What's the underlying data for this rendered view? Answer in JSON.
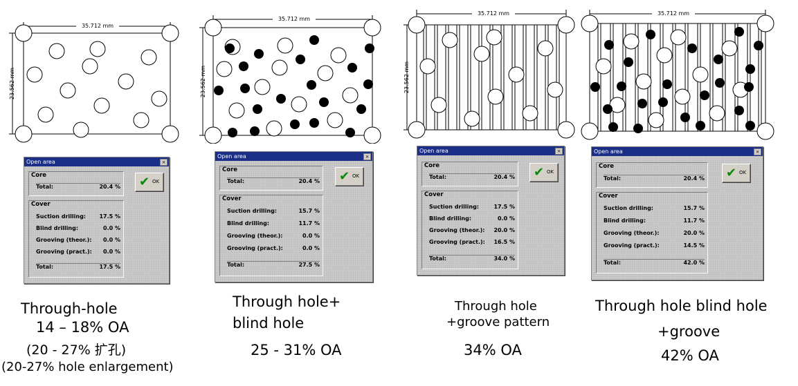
{
  "dimension_width": "35.712 mm",
  "dimension_height": "23.562 mm",
  "dialog_title": "Open area",
  "close_symbol": "×",
  "ok_label": "OK",
  "core_label": "Core",
  "cover_label": "Cover",
  "total_label": "Total:",
  "suction_label": "Suction drilling:",
  "blind_label": "Blind drilling:",
  "groove_theor_label": "Grooving (theor.):",
  "groove_pract_label": "Grooving (pract.):",
  "panels": [
    {
      "core_total": "20.4 %",
      "suction": "17.5 %",
      "blind": "0.0 %",
      "groove_theor": "0.0 %",
      "groove_pract": "0.0 %",
      "cover_total": "17.5 %",
      "caption": {
        "line1": "Through-hole",
        "line2": "14 – 18% OA",
        "line3": "(20 - 27% 扩孔)",
        "line4": "(20-27% hole enlargement)"
      }
    },
    {
      "core_total": "20.4 %",
      "suction": "15.7 %",
      "blind": "11.7 %",
      "groove_theor": "0.0 %",
      "groove_pract": "0.0 %",
      "cover_total": "27.5 %",
      "caption": {
        "line1": "Through hole+",
        "line2": "blind hole",
        "line3": "25 - 31% OA"
      }
    },
    {
      "core_total": "20.4 %",
      "suction": "17.5 %",
      "blind": "0.0 %",
      "groove_theor": "20.0 %",
      "groove_pract": "16.5 %",
      "cover_total": "34.0 %",
      "caption": {
        "line1": "Through hole",
        "line2": "+groove pattern",
        "line3": "34% OA"
      }
    },
    {
      "core_total": "20.4 %",
      "suction": "15.7 %",
      "blind": "11.7 %",
      "groove_theor": "20.0 %",
      "groove_pract": "14.5 %",
      "cover_total": "42.0 %",
      "caption": {
        "line1": "Through hole blind hole",
        "line2": "+groove",
        "line3": "42% OA"
      }
    }
  ],
  "colors": {
    "title_bar": "#1c2f88",
    "dialog_bg": "#c8c8c8",
    "check": "#0a8a0a"
  }
}
